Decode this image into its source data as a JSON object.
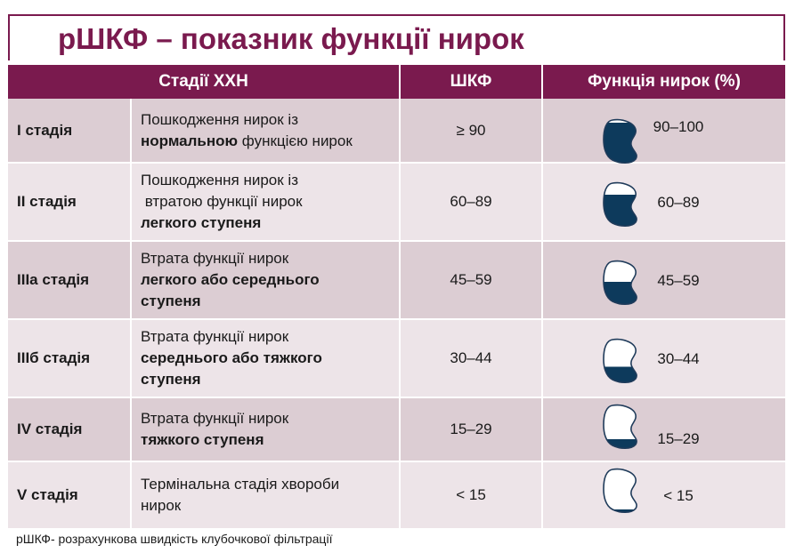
{
  "title": "рШКФ – показник функції нирок",
  "table": {
    "headers": [
      "Стадії ХХН",
      "ШКФ",
      "Функція нирок (%)"
    ],
    "rows": [
      {
        "stage": "I стадія",
        "desc": [
          [
            {
              "t": "Пошкодження нирок із"
            }
          ],
          [
            {
              "t": "нормальною",
              "b": true
            },
            {
              "t": " функцією нирок"
            }
          ]
        ],
        "gfr": "≥ 90",
        "function": "90–100",
        "fill": 0.92
      },
      {
        "stage": "II стадія",
        "desc": [
          [
            {
              "t": "Пошкодження нирок із"
            }
          ],
          [
            {
              "t": " втратою функції нирок"
            }
          ],
          [
            {
              "t": "легкого ступеня",
              "b": true
            }
          ]
        ],
        "gfr": "60–89",
        "function": "60–89",
        "fill": 0.72
      },
      {
        "stage": "IIIa стадія",
        "desc": [
          [
            {
              "t": "Втрата функції нирок"
            }
          ],
          [
            {
              "t": "легкого або середнього",
              "b": true
            }
          ],
          [
            {
              "t": "ступеня",
              "b": true
            }
          ]
        ],
        "gfr": "45–59",
        "function": "45–59",
        "fill": 0.52
      },
      {
        "stage": "IIIб стадія",
        "desc": [
          [
            {
              "t": "Втрата функції нирок"
            }
          ],
          [
            {
              "t": "середнього або тяжкого",
              "b": true
            }
          ],
          [
            {
              "t": "ступеня",
              "b": true
            }
          ]
        ],
        "gfr": "30–44",
        "function": "30–44",
        "fill": 0.37
      },
      {
        "stage": "IV стадія",
        "desc": [
          [
            {
              "t": "Втрата функції нирок"
            }
          ],
          [
            {
              "t": "тяжкого ступеня",
              "b": true
            }
          ]
        ],
        "gfr": "15–29",
        "function": "15–29",
        "fill": 0.22
      },
      {
        "stage": "V стадія",
        "desc": [
          [
            {
              "t": "Термінальна стадія хвороби"
            }
          ],
          [
            {
              "t": "нирок"
            }
          ]
        ],
        "gfr": "< 15",
        "function": "< 15",
        "fill": 0.08
      }
    ]
  },
  "footnote": "рШКФ- розрахункова швидкість клубочкової фільтрації",
  "colors": {
    "header": "#7a1a4e",
    "row_dark": "#dccdd3",
    "row_light": "#ede4e8",
    "kidney_fill": "#0d3a5c",
    "kidney_outline": "#1f3b5a"
  },
  "icon": "kidney-icon"
}
